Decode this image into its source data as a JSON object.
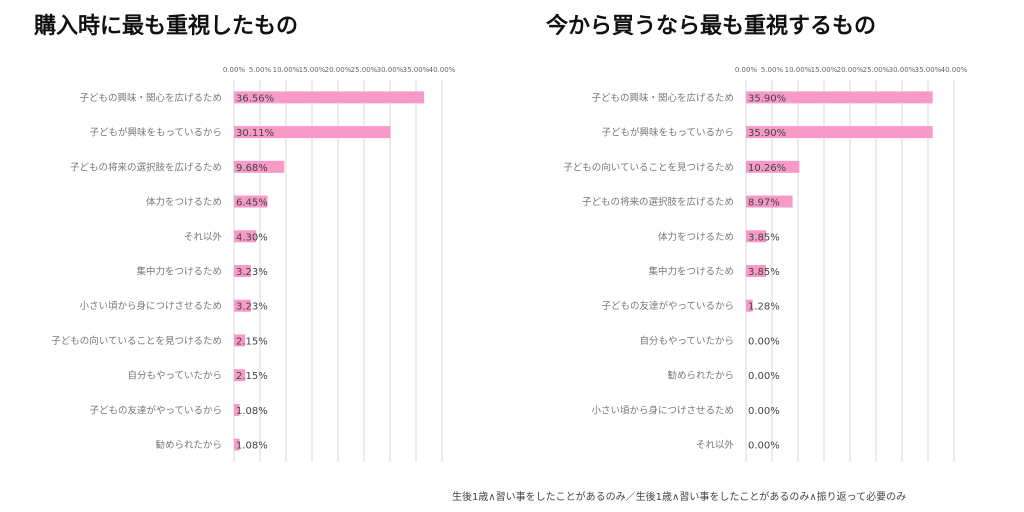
{
  "colors": {
    "bar": "#f79ac8",
    "grid": "#d9d9d9"
  },
  "footnote": "生後1歳∧習い事をしたことがあるのみ／生後1歳∧習い事をしたことがあるのみ∧振り返って必要のみ",
  "chart_data": [
    {
      "type": "bar",
      "orientation": "horizontal",
      "title": "購入時に最も重視したもの",
      "xticks": [
        "0.00%",
        "5.00%",
        "10.00%",
        "15.00%",
        "20.00%",
        "25.00%",
        "30.00%",
        "35.00%",
        "40.00%"
      ],
      "xlim": [
        0,
        40
      ],
      "grid": true,
      "categories": [
        "子どもの興味・関心を広げるため",
        "子どもが興味をもっているから",
        "子どもの将来の選択肢を広げるため",
        "体力をつけるため",
        "それ以外",
        "集中力をつけるため",
        "小さい頃から身につけさせるため",
        "子どもの向いていることを見つけるため",
        "自分もやっていたから",
        "子どもの友達がやっているから",
        "勧められたから"
      ],
      "values": [
        36.56,
        30.11,
        9.68,
        6.45,
        4.3,
        3.23,
        3.23,
        2.15,
        2.15,
        1.08,
        1.08
      ],
      "labels": [
        "36.56%",
        "30.11%",
        "9.68%",
        "6.45%",
        "4.30%",
        "3.23%",
        "3.23%",
        "2.15%",
        "2.15%",
        "1.08%",
        "1.08%"
      ]
    },
    {
      "type": "bar",
      "orientation": "horizontal",
      "title": "今から買うなら最も重視するもの",
      "xticks": [
        "0.00%",
        "5.00%",
        "10.00%",
        "15.00%",
        "20.00%",
        "25.00%",
        "30.00%",
        "35.00%",
        "40.00%"
      ],
      "xlim": [
        0,
        40
      ],
      "grid": true,
      "categories": [
        "子どもの興味・関心を広げるため",
        "子どもが興味をもっているから",
        "子どもの向いていることを見つけるため",
        "子どもの将来の選択肢を広げるため",
        "体力をつけるため",
        "集中力をつけるため",
        "子どもの友達がやっているから",
        "自分もやっていたから",
        "勧められたから",
        "小さい頃から身につけさせるため",
        "それ以外"
      ],
      "values": [
        35.9,
        35.9,
        10.26,
        8.97,
        3.85,
        3.85,
        1.28,
        0.0,
        0.0,
        0.0,
        0.0
      ],
      "labels": [
        "35.90%",
        "35.90%",
        "10.26%",
        "8.97%",
        "3.85%",
        "3.85%",
        "1.28%",
        "0.00%",
        "0.00%",
        "0.00%",
        "0.00%"
      ]
    }
  ]
}
